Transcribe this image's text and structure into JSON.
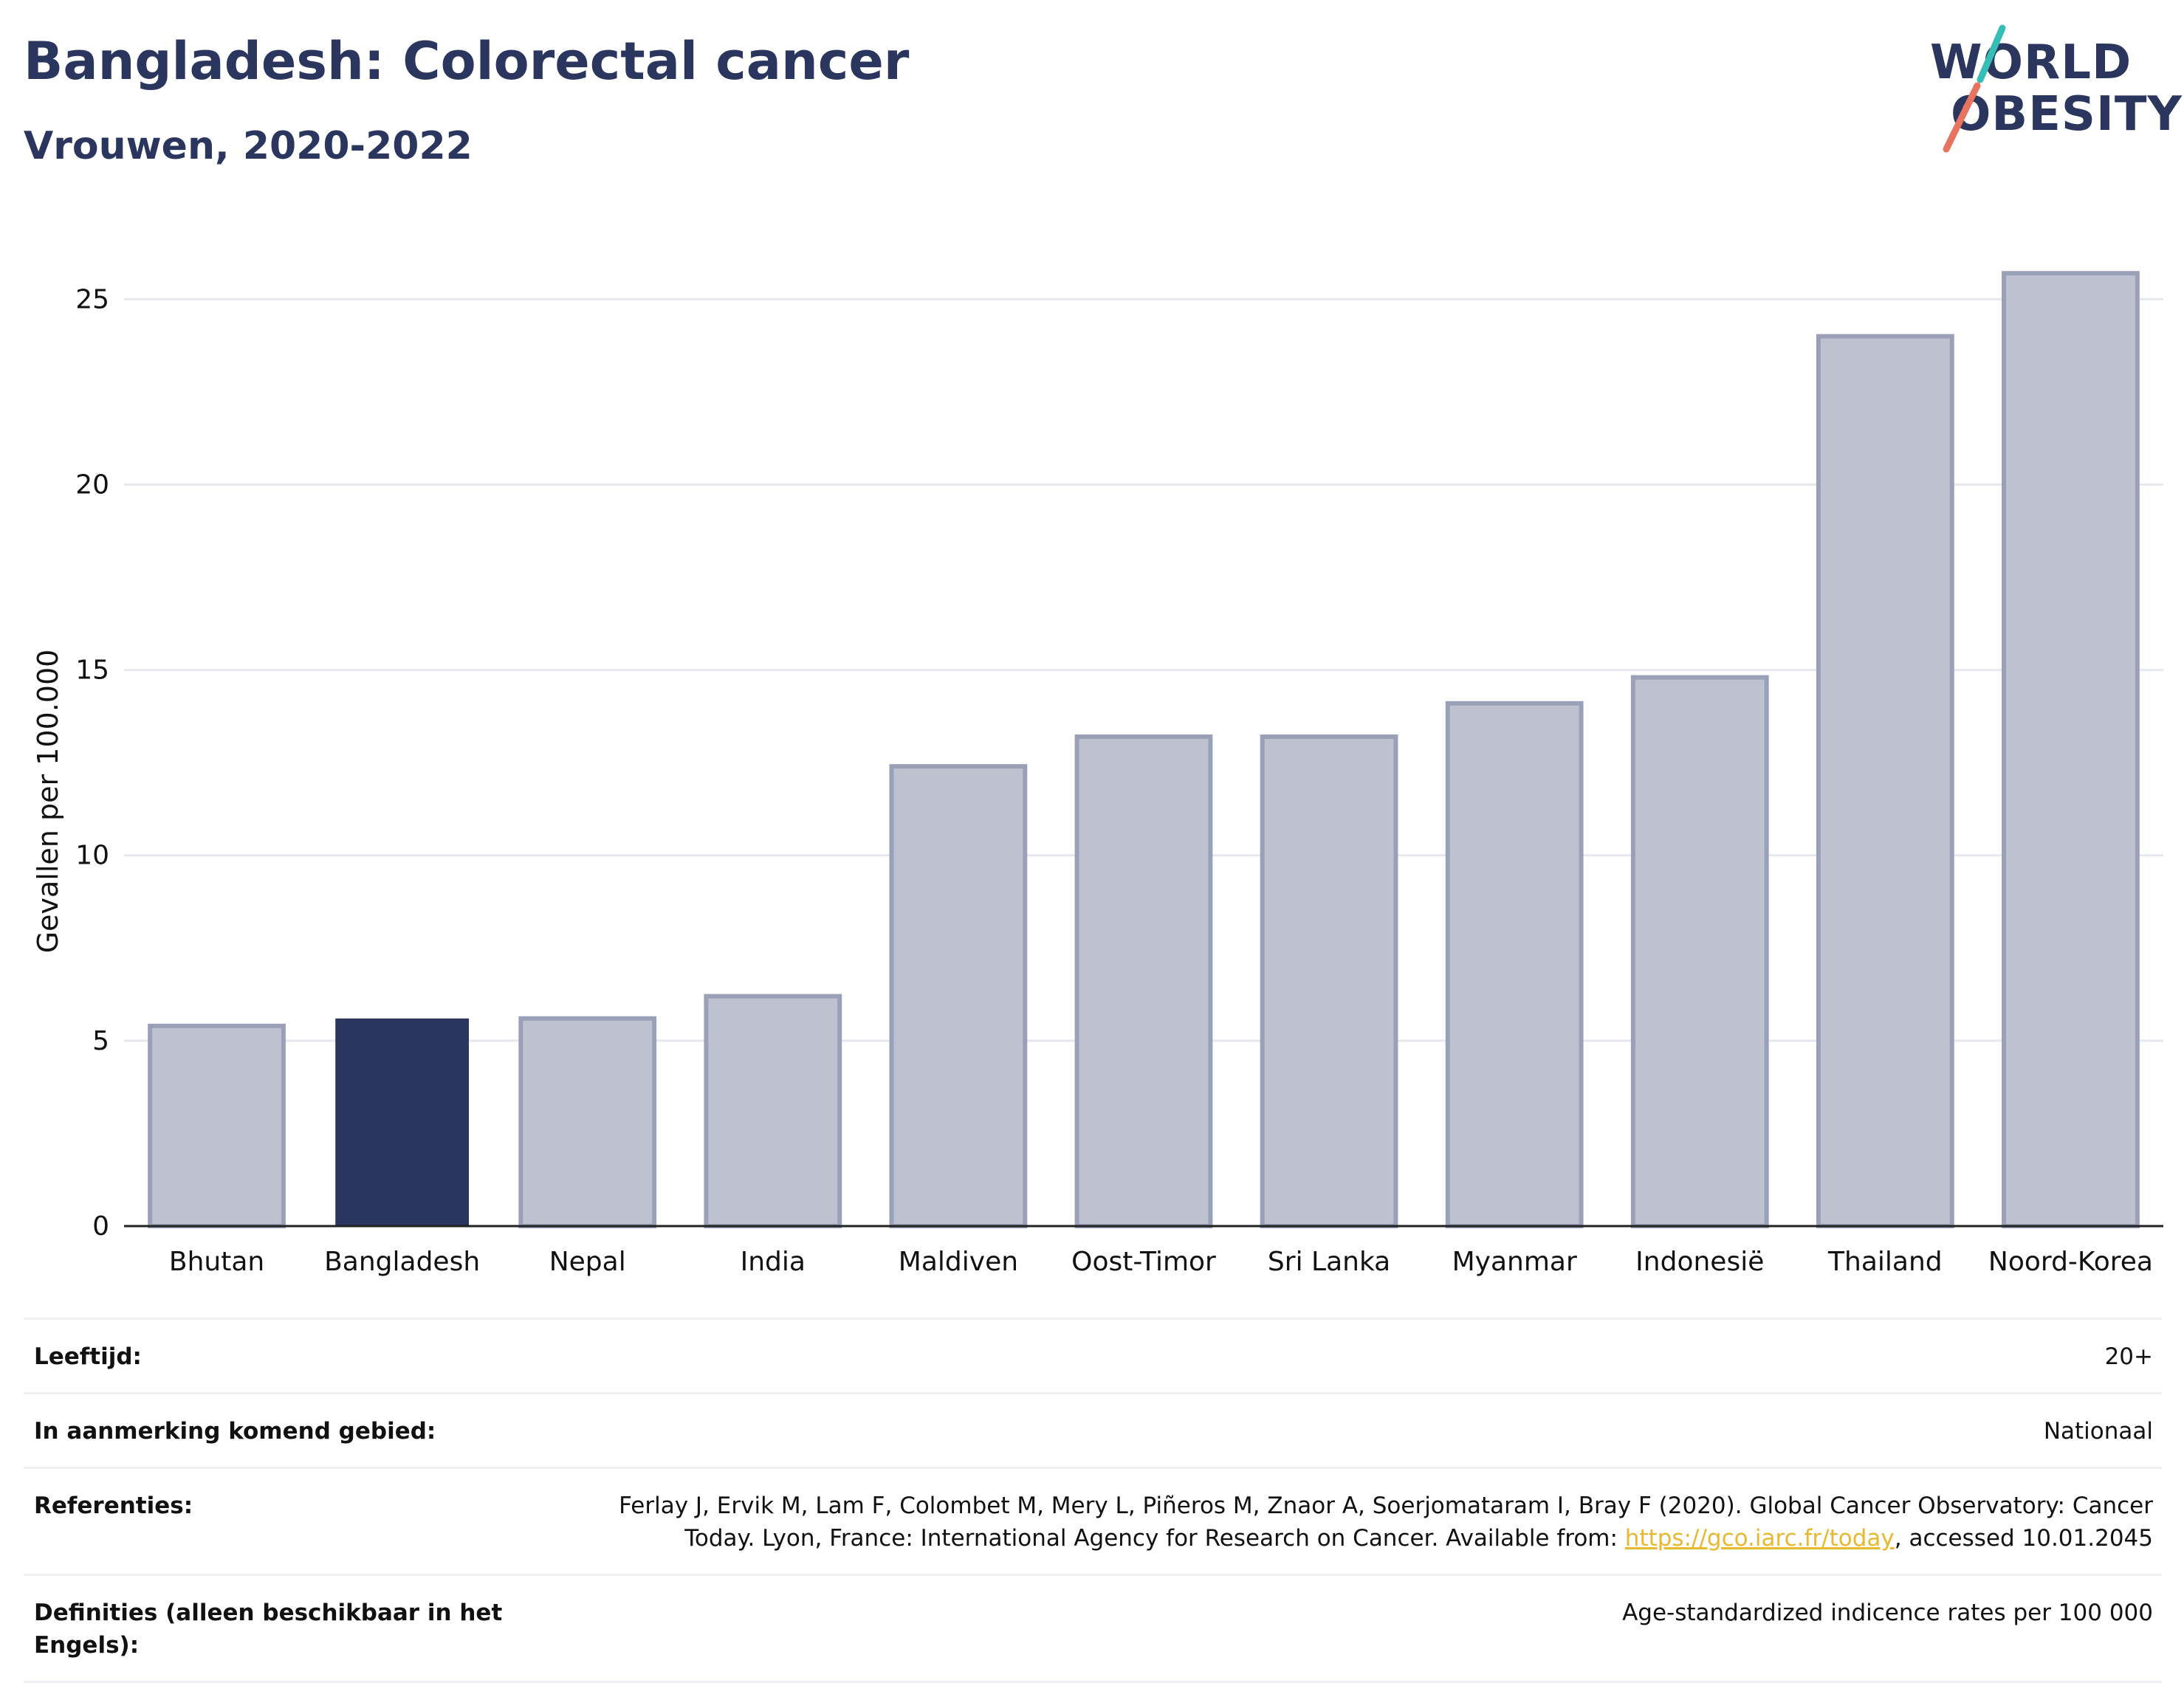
{
  "header": {
    "title": "Bangladesh: Colorectal cancer",
    "subtitle": "Vrouwen, 2020-2022",
    "logo_line1": "WORLD",
    "logo_line2": "OBESITY"
  },
  "chart_data": {
    "type": "bar",
    "categories": [
      "Bhutan",
      "Bangladesh",
      "Nepal",
      "India",
      "Maldiven",
      "Oost-Timor",
      "Sri Lanka",
      "Myanmar",
      "Indonesië",
      "Thailand",
      "Noord-Korea"
    ],
    "values": [
      5.4,
      5.6,
      5.6,
      6.2,
      12.4,
      13.2,
      13.2,
      14.1,
      14.8,
      24.0,
      25.7
    ],
    "highlight": "Bangladesh",
    "xlabel": "",
    "ylabel": "Gevallen per 100.000",
    "ylim": [
      0,
      26.5
    ],
    "yticks": [
      0,
      5,
      10,
      15,
      20,
      25
    ],
    "grid": true,
    "colors": {
      "bar": "#bec1cf",
      "bar_edge": "#9aa0b8",
      "highlight": "#2b365e",
      "grid": "#e6e8ee",
      "axis": "#222222"
    }
  },
  "meta": {
    "rows": [
      {
        "label": "Leeftijd:",
        "value": "20+"
      },
      {
        "label": "In aanmerking komend gebied:",
        "value": "Nationaal"
      },
      {
        "label": "Definities (alleen beschikbaar in het Engels):",
        "value": "Age-standardized indicence rates per 100 000"
      }
    ],
    "references": {
      "label": "Referenties:",
      "text_before": "Ferlay J, Ervik M, Lam F, Colombet M, Mery L, Piñeros M, Znaor A, Soerjomataram I, Bray F (2020). Global Cancer Observatory: Cancer Today. Lyon, France: International Agency for Research on Cancer. Available from: ",
      "link": "https://gco.iarc.fr/today",
      "text_after": ", accessed 10.01.2045"
    }
  }
}
